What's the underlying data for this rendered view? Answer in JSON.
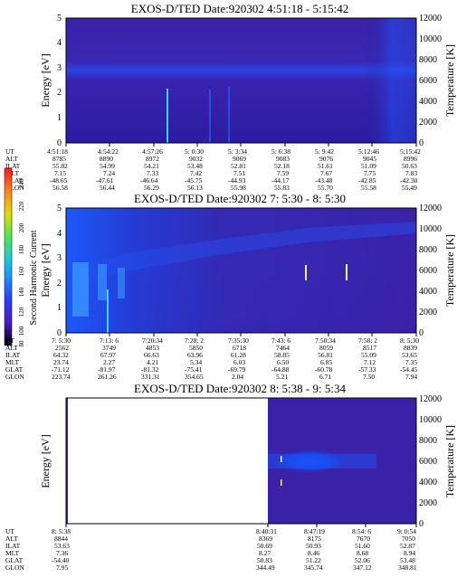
{
  "figure": {
    "colorbar": {
      "label": "Second Harmonic Current",
      "ticks": [
        "240",
        "220",
        "200",
        "180",
        "160",
        "140",
        "120",
        "100",
        "80"
      ],
      "colors": [
        "#ff1a1a",
        "#ff8c1a",
        "#e0e000",
        "#4ce84c",
        "#18c8e0",
        "#1a8cff",
        "#2840ff",
        "#4a1ac8",
        "#000000"
      ]
    },
    "row_labels": [
      "UT",
      "ALT",
      "ILAT",
      "MLT",
      "GLAT",
      "GLON"
    ],
    "panel_colors": {
      "background": "#3a22a8",
      "band": "#1c46e6",
      "bright": "#3ad8ff",
      "dark": "#2a1690"
    }
  },
  "chart_data": [
    {
      "type": "heatmap",
      "title": "EXOS-D/TED   Date:920302   4:51:18 - 5:15:42",
      "ylabel": "Energy [eV]",
      "ylabel2": "Temperature [K]",
      "y_ticks": [
        "0",
        "1",
        "2",
        "3",
        "4",
        "5"
      ],
      "y2_ticks": [
        "0",
        "2000",
        "4000",
        "6000",
        "8000",
        "10000",
        "12000"
      ],
      "ylim": [
        0,
        5
      ],
      "y2lim": [
        0,
        12000
      ],
      "table": {
        "UT": [
          "4:51:18",
          "4:54:22",
          "4:57:26",
          "5: 0:30",
          "5: 3:34",
          "5: 6:38",
          "5: 9:42",
          "5:12:46",
          "5:15:42"
        ],
        "ALT": [
          "8785",
          "8890",
          "8972",
          "9032",
          "9069",
          "9083",
          "9076",
          "9045",
          "8996"
        ],
        "ILAT": [
          "55.82",
          "54.99",
          "54.21",
          "53.48",
          "52.81",
          "52.18",
          "51.61",
          "51.09",
          "50.63"
        ],
        "MLT": [
          "7.15",
          "7.24",
          "7.33",
          "7.42",
          "7.51",
          "7.59",
          "7.67",
          "7.75",
          "7.83"
        ],
        "GLAT": [
          "-48.65",
          "-47.61",
          "-46.64",
          "-45.75",
          "-44.93",
          "-44.17",
          "-43.48",
          "-42.85",
          "-42.30"
        ],
        "GLON": [
          "56.58",
          "56.44",
          "56.29",
          "56.13",
          "55.98",
          "55.83",
          "55.70",
          "55.58",
          "55.49"
        ]
      }
    },
    {
      "type": "heatmap",
      "title": "EXOS-D/TED   Date:920302   7: 5:30 - 8: 5:30",
      "ylabel": "Energy [eV]",
      "ylabel2": "Temperature [K]",
      "y_ticks": [
        "0",
        "1",
        "2",
        "3",
        "4",
        "5"
      ],
      "y2_ticks": [
        "0",
        "2000",
        "4000",
        "6000",
        "8000",
        "10000",
        "12000"
      ],
      "ylim": [
        0,
        5
      ],
      "y2lim": [
        0,
        12000
      ],
      "table": {
        "UT": [
          "7: 5:30",
          "7:13: 6",
          "7:20:34",
          "7:28: 2",
          "7:35:30",
          "7:43: 6",
          "7:50:34",
          "7:58: 2",
          "8: 5:30"
        ],
        "ALT": [
          "2562",
          "3749",
          "4853",
          "5850",
          "6718",
          "7464",
          "8059",
          "8517",
          "8839"
        ],
        "ILAT": [
          "64.32",
          "67.97",
          "66.63",
          "63.96",
          "61.28",
          "58.85",
          "56.81",
          "55.09",
          "53.65"
        ],
        "MLT": [
          "23.74",
          "2.27",
          "4.21",
          "5.34",
          "6.03",
          "6.50",
          "6.85",
          "7.12",
          "7.35"
        ],
        "GLAT": [
          "-71.12",
          "-81.97",
          "-81.32",
          "-75.41",
          "-69.79",
          "-64.88",
          "-60.78",
          "-57.33",
          "-54.45"
        ],
        "GLON": [
          "223.74",
          "261.26",
          "331.31",
          "354.65",
          "2.04",
          "5.21",
          "6.71",
          "7.50",
          "7.94"
        ]
      }
    },
    {
      "type": "heatmap",
      "title": "EXOS-D/TED   Date:920302   8: 5:38 - 9: 5:34",
      "ylabel": "Energy [eV]",
      "ylabel2": "Temperature [K]",
      "y_ticks": [],
      "y2_ticks": [
        "0",
        "2000",
        "4000",
        "6000",
        "8000",
        "10000",
        "12000"
      ],
      "ylim": [
        0,
        5
      ],
      "y2lim": [
        0,
        12000
      ],
      "table": {
        "UT": [
          "8: 5:38",
          "8:40:31",
          "8:47:19",
          "8:54: 6",
          "9: 0:54"
        ],
        "ALT": [
          "8844",
          "8369",
          "8175",
          "7670",
          "7050"
        ],
        "ILAT": [
          "53.63",
          "50.69",
          "50.93",
          "51.60",
          "52.87"
        ],
        "MLT": [
          "7.36",
          "8.27",
          "8.46",
          "8.68",
          "8.94"
        ],
        "GLAT": [
          "-54.40",
          "50.83",
          "51.22",
          "52.06",
          "53.48"
        ],
        "GLON": [
          "7.95",
          "344.49",
          "345.74",
          "347.12",
          "348.81"
        ]
      }
    }
  ]
}
